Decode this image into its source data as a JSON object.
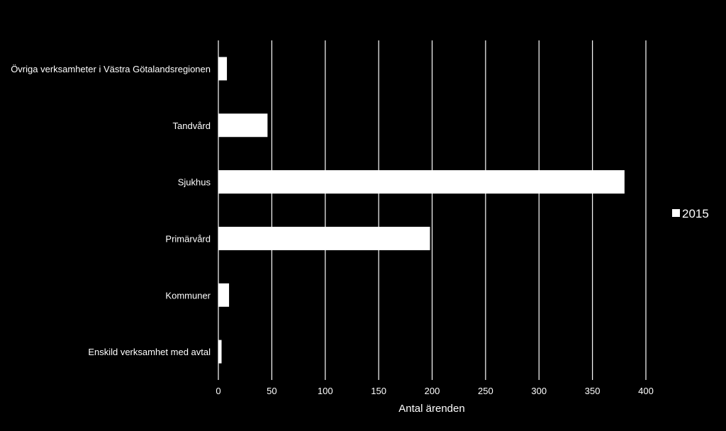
{
  "chart_data": {
    "type": "bar",
    "orientation": "horizontal",
    "categories": [
      "Övriga verksamheter i Västra Götalandsregionen",
      "Tandvård",
      "Sjukhus",
      "Primärvård",
      "Kommuner",
      "Enskild verksamhet med avtal"
    ],
    "series": [
      {
        "name": "2015",
        "values": [
          8,
          46,
          380,
          198,
          10,
          3
        ]
      }
    ],
    "title": "",
    "xlabel": "Antal ärenden",
    "ylabel": "",
    "xlim": [
      0,
      400
    ],
    "xticks": [
      "0",
      "50",
      "100",
      "150",
      "200",
      "250",
      "300",
      "350",
      "400"
    ],
    "grid": "vertical",
    "legend": "right",
    "colors": {
      "background": "#000000",
      "bar": "#ffffff",
      "grid": "#ffffff",
      "text": "#ffffff"
    }
  }
}
